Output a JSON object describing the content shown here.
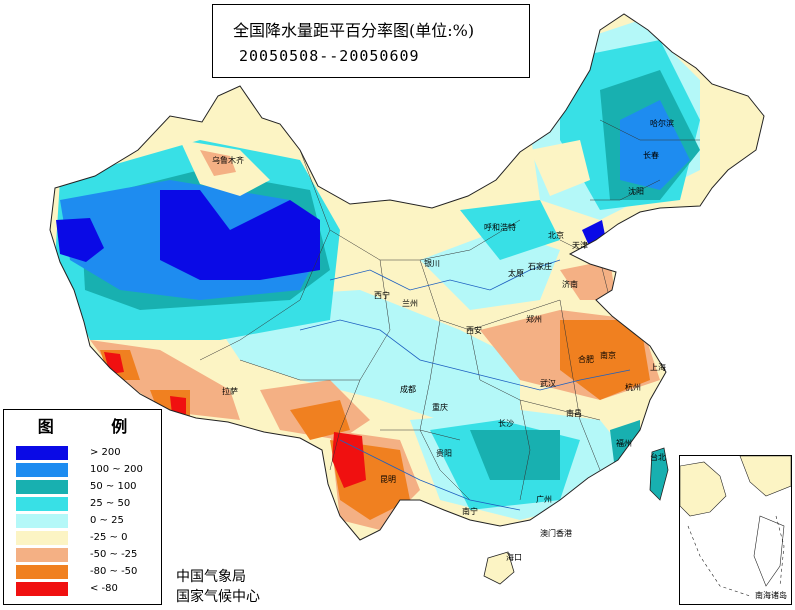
{
  "title": "全国降水量距平百分率图(单位:%)",
  "period": "20050508--20050609",
  "legend": {
    "title": "图 例",
    "items": [
      {
        "label": "> 200",
        "color": "#0a0ae6"
      },
      {
        "label": "100 ~ 200",
        "color": "#1e8cf0"
      },
      {
        "label": "50 ~ 100",
        "color": "#18b0b0"
      },
      {
        "label": "25 ~ 50",
        "color": "#38e0e6"
      },
      {
        "label": "0 ~ 25",
        "color": "#b4f8f8"
      },
      {
        "label": "-25 ~ 0",
        "color": "#fcf4c4"
      },
      {
        "label": "-50 ~ -25",
        "color": "#f4b084"
      },
      {
        "label": "-80 ~ -50",
        "color": "#f08020"
      },
      {
        "label": "< -80",
        "color": "#f01010"
      }
    ]
  },
  "agency": {
    "line1": "中国气象局",
    "line2": "国家气候中心"
  },
  "inset": {
    "label": "南海诸岛"
  },
  "cities": {
    "urumqi": "乌鲁木齐",
    "harbin": "哈尔滨",
    "changchun": "长春",
    "shenyang": "沈阳",
    "hohhot": "呼和浩特",
    "beijing": "北京",
    "tianjin": "天津",
    "shijiazhuang": "石家庄",
    "taiyuan": "太原",
    "jinan": "济南",
    "yinchuan": "银川",
    "xining": "西宁",
    "lanzhou": "兰州",
    "xian": "西安",
    "zhengzhou": "郑州",
    "hefei": "合肥",
    "nanjing": "南京",
    "shanghai": "上海",
    "wuhan": "武汉",
    "hangzhou": "杭州",
    "lhasa": "拉萨",
    "chengdu": "成都",
    "chongqing": "重庆",
    "changsha": "长沙",
    "nanchang": "南昌",
    "fuzhou": "福州",
    "taibei": "台北",
    "guiyang": "贵阳",
    "kunming": "昆明",
    "nanning": "南宁",
    "guangzhou": "广州",
    "hongkong_macao": "澳门香港",
    "haikou": "海口"
  }
}
